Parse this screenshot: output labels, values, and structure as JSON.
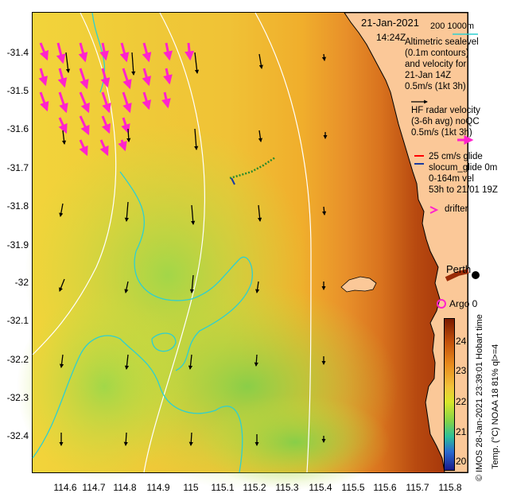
{
  "map": {
    "date": "21-Jan-2021",
    "time": "14:24Z",
    "depth_contours": "200  1000m",
    "x_ticks": [
      "114.6",
      "114.7",
      "114.8",
      "114.9",
      "115",
      "115.1",
      "115.2",
      "115.3",
      "115.4",
      "115.5",
      "115.6",
      "115.7",
      "115.8"
    ],
    "y_ticks": [
      "-31.4",
      "-31.5",
      "-31.6",
      "-31.7",
      "-31.8",
      "-31.9",
      "-32",
      "-32.1",
      "-32.2",
      "-32.3",
      "-32.4"
    ],
    "place_label": "Perth",
    "argo_label": "Argo 0"
  },
  "legend": {
    "altimetric": [
      "Altimetric sealevel",
      "(0.1m contours)",
      "and velocity for",
      "21-Jan 14Z",
      "0.5m/s (1kt 3h)"
    ],
    "hf_radar": [
      "HF radar velocity",
      "(3-6h avg) noQC",
      "0.5m/s (1kt 3h)"
    ],
    "glider": [
      "25 cm/s glide",
      "slocum_glide  0m",
      "0-164m vel",
      "53h to 21/01 19Z"
    ],
    "drifter": "drifter"
  },
  "colorbar": {
    "ticks": [
      "24",
      "23",
      "22",
      "21",
      "20"
    ],
    "title": "Temp. (°C) NOAA 18 81% ql>=4",
    "credit": "© IMOS 28-Jan-2021 23:39:01 Hobart time"
  },
  "colors": {
    "land": "#fbc898",
    "altimetry_contour": "#2ecfd0",
    "hf_radar_arrow": "#ff22cc",
    "depth_contour": "#ffffff",
    "glider_track": "#2a8a2a"
  }
}
